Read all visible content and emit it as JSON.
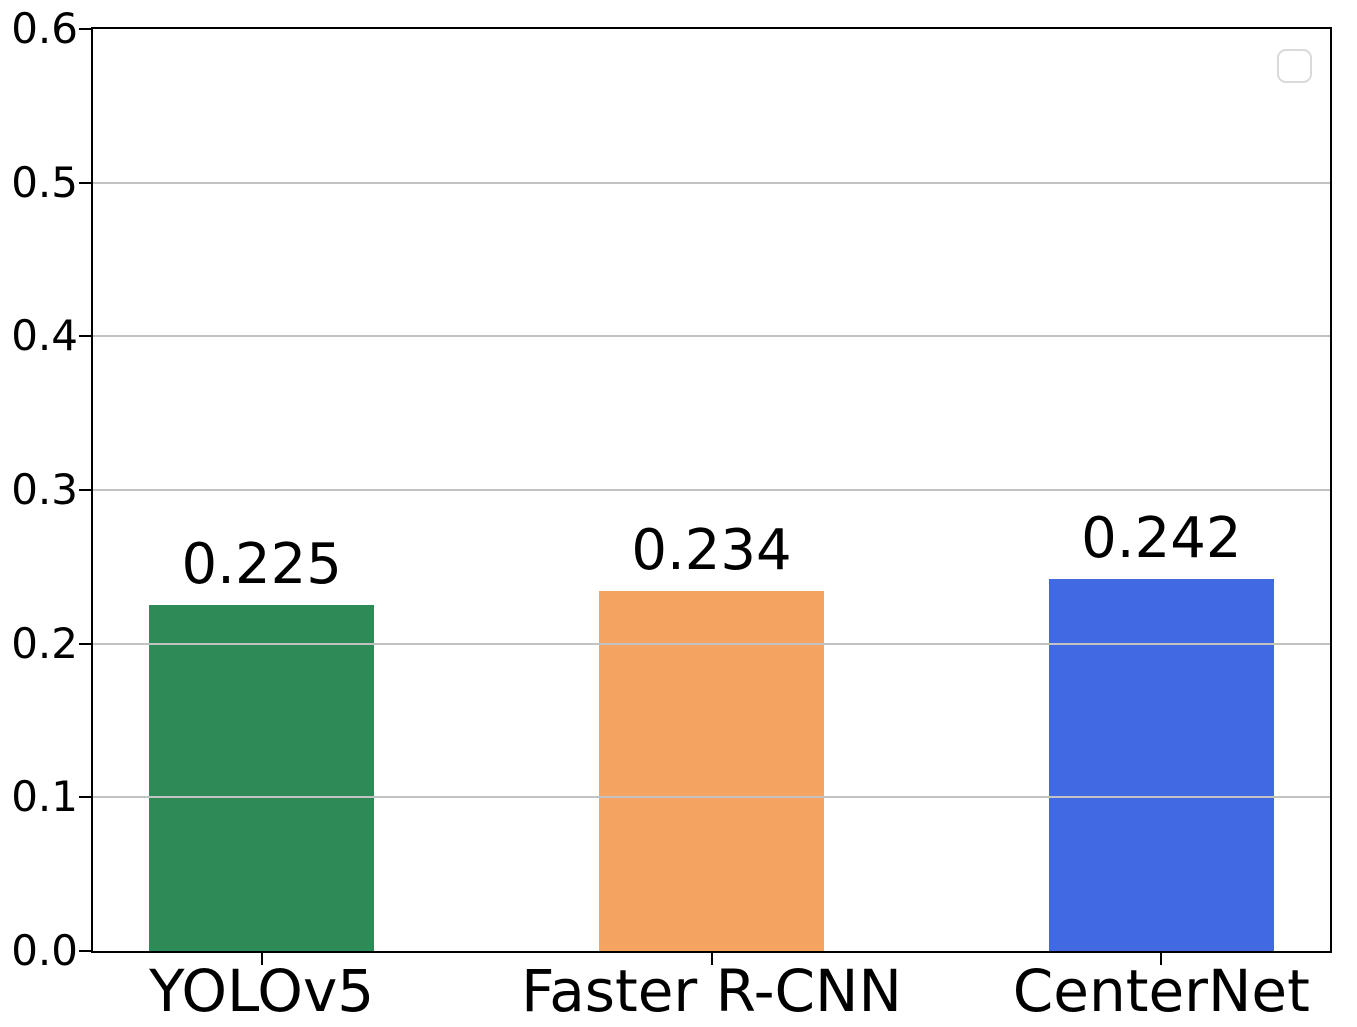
{
  "figure": {
    "background": "#ffffff",
    "axis_color": "#000000",
    "grid_color": "#c2c2c2"
  },
  "chart_data": {
    "type": "bar",
    "title": "",
    "xlabel": "",
    "ylabel": "",
    "categories": [
      "YOLOv5",
      "Faster R-CNN",
      "CenterNet"
    ],
    "values": [
      0.225,
      0.234,
      0.242
    ],
    "value_labels": [
      "0.225",
      "0.234",
      "0.242"
    ],
    "bar_colors": [
      "#2e8b57",
      "#f4a460",
      "#4169e1"
    ],
    "ylim": [
      0.0,
      0.6
    ],
    "yticks": [
      0.0,
      0.1,
      0.2,
      0.3,
      0.4,
      0.5,
      0.6
    ],
    "ytick_labels": [
      "0.0",
      "0.1",
      "0.2",
      "0.3",
      "0.4",
      "0.5",
      "0.6"
    ],
    "grid": "horizontal",
    "grid_above_bars": true,
    "legend": {
      "position": "upper-right",
      "empty": true,
      "entries": []
    }
  }
}
